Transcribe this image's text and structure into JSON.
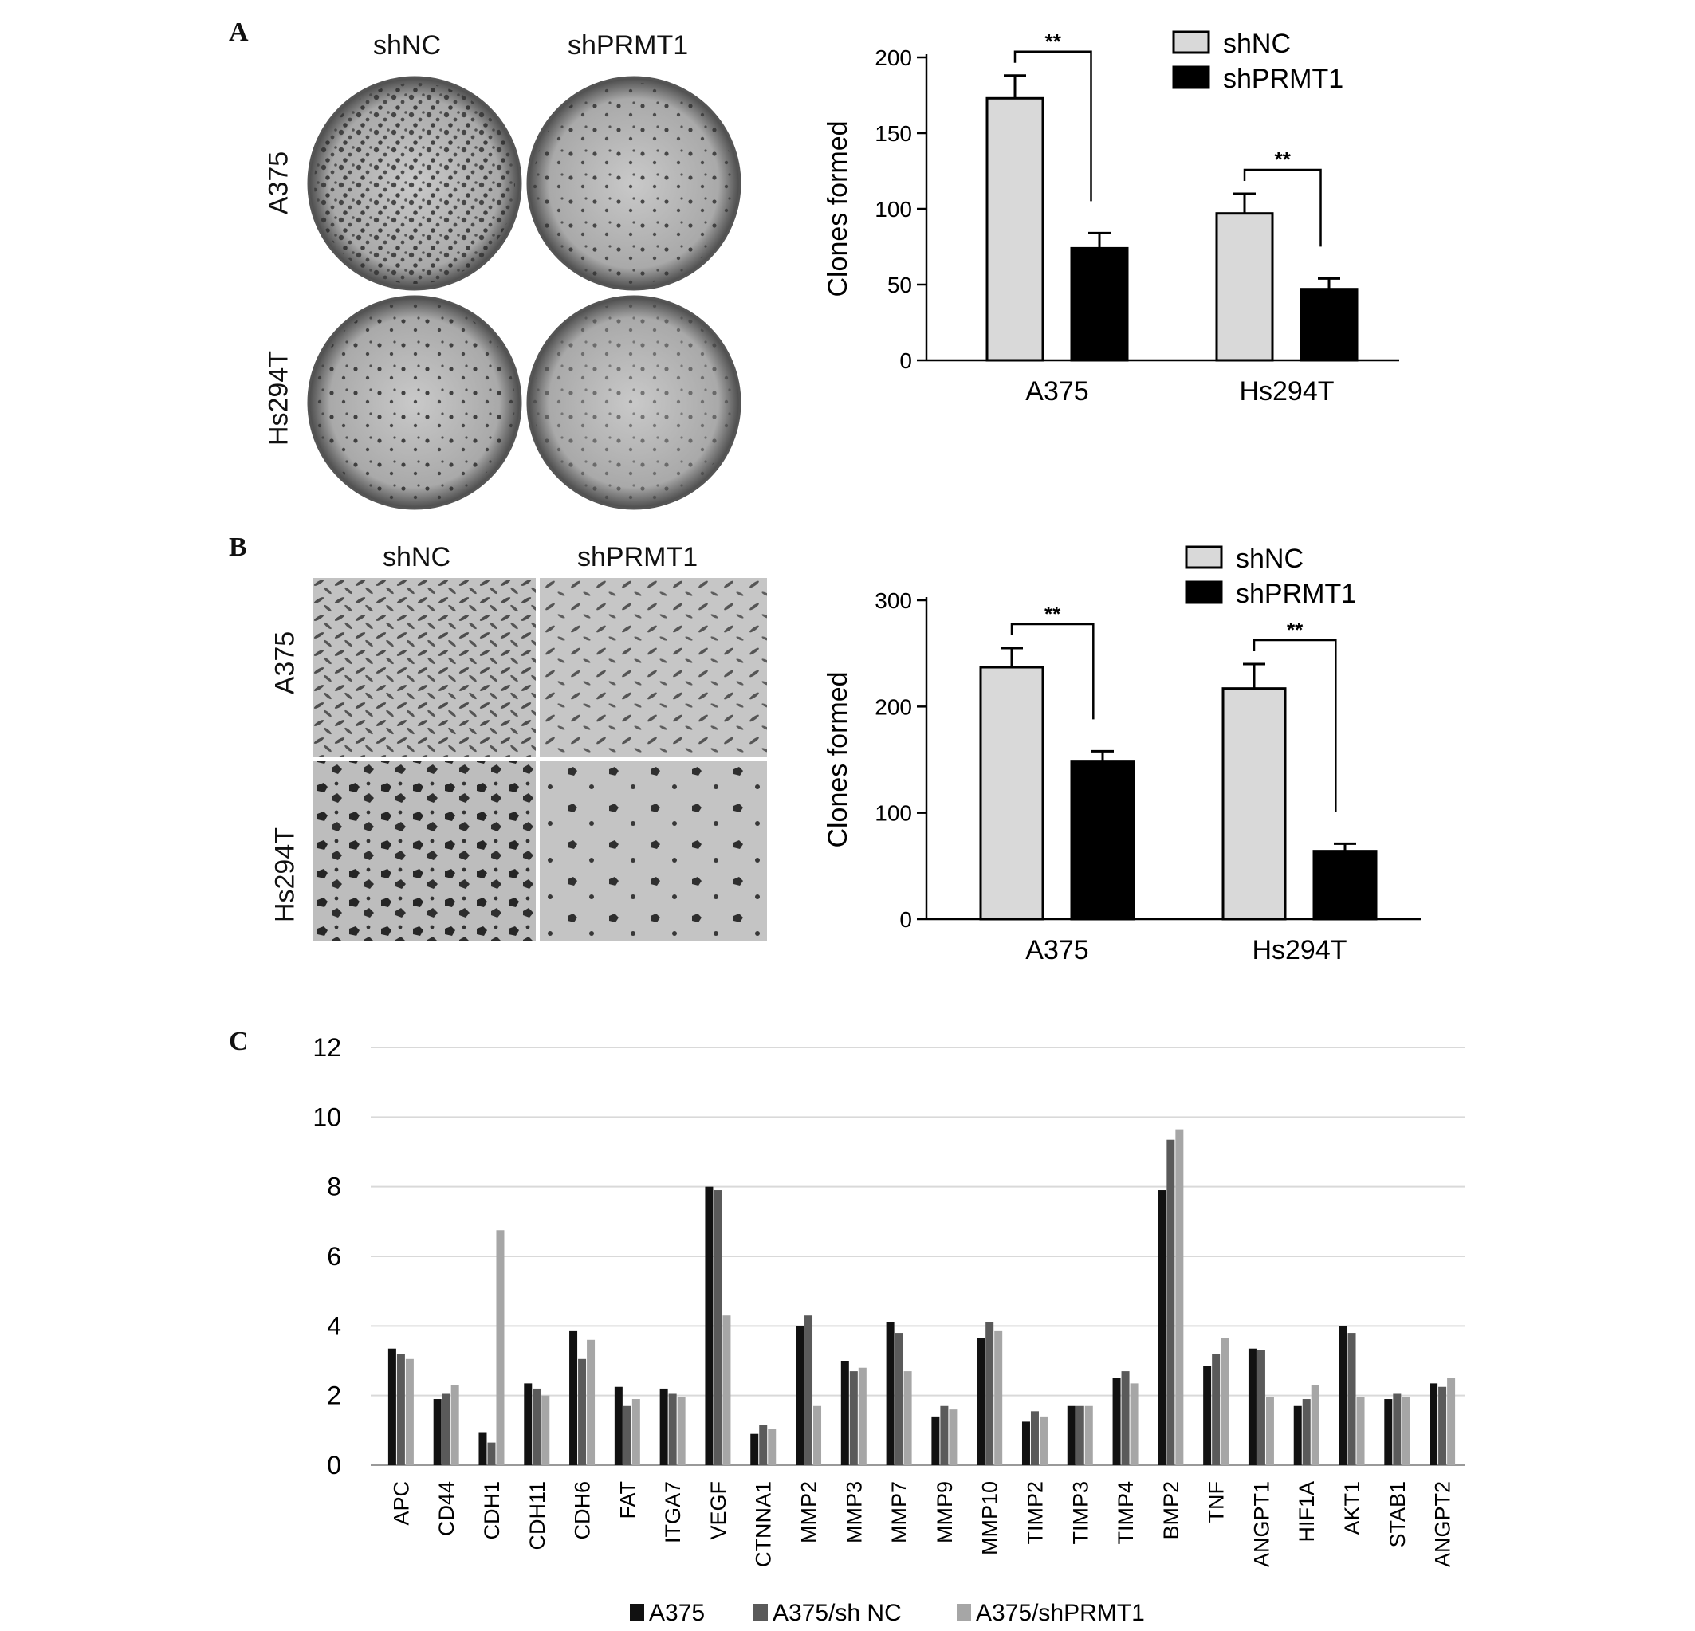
{
  "panels": {
    "A": {
      "letter": "A",
      "photo": {
        "col_labels": [
          "shNC",
          "shPRMT1"
        ],
        "row_labels": [
          "A375",
          "Hs294T"
        ],
        "kind": "colony-plates"
      },
      "legend": [
        "shNC",
        "shPRMT1"
      ],
      "ylabel": "Clones formed",
      "sig": [
        "**",
        "**"
      ]
    },
    "B": {
      "letter": "B",
      "photo": {
        "col_labels": [
          "shNC",
          "shPRMT1"
        ],
        "row_labels": [
          "A375",
          "Hs294T"
        ],
        "kind": "transwell-fields"
      },
      "legend": [
        "shNC",
        "shPRMT1"
      ],
      "ylabel": "Clones formed",
      "sig": [
        "**",
        "**"
      ]
    },
    "C": {
      "letter": "C",
      "legend": [
        "A375",
        "A375/sh NC",
        "A375/shPRMT1"
      ]
    }
  },
  "colors": {
    "shNC": "#d9d9d9",
    "shPRMT1": "#000000",
    "A375": "#111111",
    "A375_shNC": "#5a5a5a",
    "A375_shPRMT1": "#a6a6a6",
    "grid": "#d9d9d9"
  },
  "chart_data": [
    {
      "id": "A",
      "type": "bar",
      "categories": [
        "A375",
        "Hs294T"
      ],
      "series": [
        {
          "name": "shNC",
          "values": [
            173,
            97
          ],
          "errors": [
            15,
            13
          ]
        },
        {
          "name": "shPRMT1",
          "values": [
            74,
            47
          ],
          "errors": [
            10,
            7
          ]
        }
      ],
      "ylabel": "Clones formed",
      "ylim": [
        0,
        200
      ],
      "yticks": [
        0,
        50,
        100,
        150,
        200
      ],
      "annotations": [
        "**",
        "**"
      ],
      "legend_position": "top-right"
    },
    {
      "id": "B",
      "type": "bar",
      "categories": [
        "A375",
        "Hs294T"
      ],
      "series": [
        {
          "name": "shNC",
          "values": [
            237,
            217
          ],
          "errors": [
            18,
            23
          ]
        },
        {
          "name": "shPRMT1",
          "values": [
            148,
            64
          ],
          "errors": [
            10,
            7
          ]
        }
      ],
      "ylabel": "Clones formed",
      "ylim": [
        0,
        300
      ],
      "yticks": [
        0,
        100,
        200,
        300
      ],
      "annotations": [
        "**",
        "**"
      ],
      "legend_position": "top-right"
    },
    {
      "id": "C",
      "type": "bar",
      "categories": [
        "APC",
        "CD44",
        "CDH1",
        "CDH11",
        "CDH6",
        "FAT",
        "ITGA7",
        "VEGF",
        "CTNNA1",
        "MMP2",
        "MMP3",
        "MMP7",
        "MMP9",
        "MMP10",
        "TIMP2",
        "TIMP3",
        "TIMP4",
        "BMP2",
        "TNF",
        "ANGPT1",
        "HIF1A",
        "AKT1",
        "STAB1",
        "ANGPT2"
      ],
      "series": [
        {
          "name": "A375",
          "values": [
            3.35,
            1.9,
            0.95,
            2.35,
            3.85,
            2.25,
            2.2,
            8.0,
            0.9,
            4.0,
            3.0,
            4.1,
            1.4,
            3.65,
            1.25,
            1.7,
            2.5,
            7.9,
            2.85,
            3.35,
            1.7,
            4.0,
            1.9,
            2.35
          ]
        },
        {
          "name": "A375/sh NC",
          "values": [
            3.2,
            2.05,
            0.65,
            2.2,
            3.05,
            1.7,
            2.05,
            7.9,
            1.15,
            4.3,
            2.7,
            3.8,
            1.7,
            4.1,
            1.55,
            1.7,
            2.7,
            9.35,
            3.2,
            3.3,
            1.9,
            3.8,
            2.05,
            2.25
          ]
        },
        {
          "name": "A375/shPRMT1",
          "values": [
            3.05,
            2.3,
            6.75,
            2.0,
            3.6,
            1.9,
            1.95,
            4.3,
            1.05,
            1.7,
            2.8,
            2.7,
            1.6,
            3.85,
            1.4,
            1.7,
            2.35,
            9.65,
            3.65,
            1.95,
            2.3,
            1.95,
            1.95,
            2.5
          ]
        }
      ],
      "ylim": [
        0,
        12
      ],
      "yticks": [
        0,
        2,
        4,
        6,
        8,
        10,
        12
      ],
      "grid": true,
      "legend_position": "bottom"
    }
  ]
}
